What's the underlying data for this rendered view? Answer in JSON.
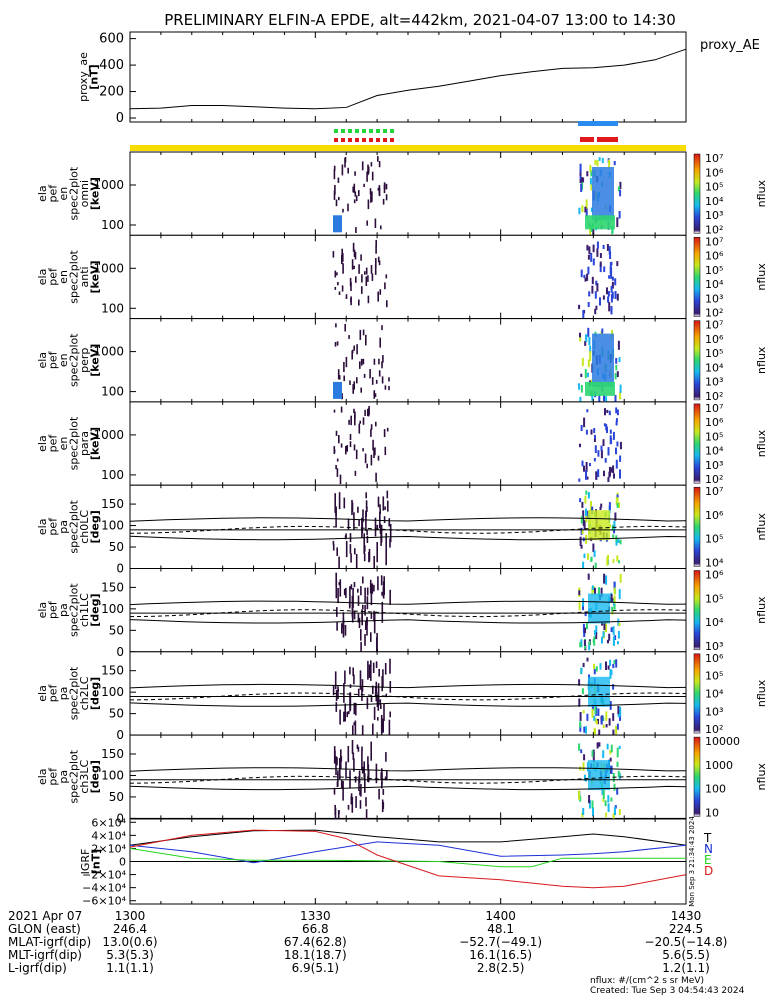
{
  "chart_data": {
    "type": "multi-panel",
    "title": "PRELIMINARY ELFIN-A EPDE, alt=442km, 2021-04-07 13:00 to 14:30",
    "time_ticks": [
      "1300",
      "1330",
      "1400",
      "1430"
    ],
    "ae_panel": {
      "ylabel_lines": [
        "proxy_ae",
        "[nT]"
      ],
      "legend": "proxy_AE",
      "ylim": [
        -30,
        650
      ],
      "yticks": [
        "600",
        "400",
        "200",
        "0"
      ],
      "ytick_values": [
        600,
        400,
        200,
        0
      ],
      "x": [
        0,
        5,
        10,
        15,
        20,
        25,
        30,
        35,
        40,
        45,
        50,
        55,
        60,
        65,
        70,
        75,
        80,
        85,
        90
      ],
      "values": [
        70,
        75,
        95,
        95,
        85,
        75,
        70,
        80,
        170,
        210,
        240,
        280,
        320,
        350,
        375,
        380,
        400,
        440,
        520
      ]
    },
    "spectrogram_panels": [
      {
        "ylabel_lines": [
          "ela",
          "pef",
          "en",
          "spec2plot",
          "omni",
          "[keV]"
        ],
        "yticks": [
          "1000",
          "100"
        ],
        "cbar_ticks": [
          "10⁷",
          "10⁶",
          "10⁵",
          "10⁴",
          "10³",
          "10²"
        ],
        "cbar_label": "nflux"
      },
      {
        "ylabel_lines": [
          "ela",
          "pef",
          "en",
          "spec2plot",
          "anti",
          "[keV]"
        ],
        "yticks": [
          "1000",
          "100"
        ],
        "cbar_ticks": [
          "10⁷",
          "10⁶",
          "10⁵",
          "10⁴",
          "10³",
          "10²"
        ],
        "cbar_label": "nflux"
      },
      {
        "ylabel_lines": [
          "ela",
          "pef",
          "en",
          "spec2plot",
          "perp",
          "[keV]"
        ],
        "yticks": [
          "1000",
          "100"
        ],
        "cbar_ticks": [
          "10⁷",
          "10⁶",
          "10⁵",
          "10⁴",
          "10³",
          "10²"
        ],
        "cbar_label": "nflux"
      },
      {
        "ylabel_lines": [
          "ela",
          "pef",
          "en",
          "spec2plot",
          "para",
          "[keV]"
        ],
        "yticks": [
          "1000",
          "100"
        ],
        "cbar_ticks": [
          "10⁷",
          "10⁶",
          "10⁵",
          "10⁴",
          "10³",
          "10²"
        ],
        "cbar_label": "nflux"
      },
      {
        "ylabel_lines": [
          "ela",
          "pef",
          "pa",
          "spec2plot",
          "ch0LC",
          "[deg]"
        ],
        "yticks": [
          "150",
          "100",
          "50",
          "0"
        ],
        "cbar_ticks": [
          "10⁷",
          "10⁶",
          "10⁵",
          "10⁴"
        ],
        "cbar_label": "nflux"
      },
      {
        "ylabel_lines": [
          "ela",
          "pef",
          "pa",
          "spec2plot",
          "ch1LC",
          "[deg]"
        ],
        "yticks": [
          "150",
          "100",
          "50",
          "0"
        ],
        "cbar_ticks": [
          "10⁶",
          "10⁵",
          "10⁴",
          "10³"
        ],
        "cbar_label": "nflux"
      },
      {
        "ylabel_lines": [
          "ela",
          "pef",
          "pa",
          "spec2plot",
          "ch2LC",
          "[deg]"
        ],
        "yticks": [
          "150",
          "100",
          "50",
          "0"
        ],
        "cbar_ticks": [
          "10⁶",
          "10⁵",
          "10⁴",
          "10³",
          "10²"
        ],
        "cbar_label": "nflux"
      },
      {
        "ylabel_lines": [
          "ela",
          "pef",
          "pa",
          "spec2plot",
          "ch3LC",
          "[deg]"
        ],
        "yticks": [
          "150",
          "100",
          "50",
          "0"
        ],
        "cbar_ticks": [
          "10000",
          "1000",
          "100",
          "10"
        ],
        "cbar_label": "nflux"
      }
    ],
    "igrf_panel": {
      "ylabel_lines": [
        "IGRF",
        "[nT]"
      ],
      "yticks": [
        "6×10⁴",
        "4×10⁴",
        "2×10⁴",
        "0",
        "−2×10⁴",
        "−4×10⁴",
        "−6×10⁴"
      ],
      "ytick_values": [
        60000,
        40000,
        20000,
        0,
        -20000,
        -40000,
        -60000
      ],
      "ylim": [
        -65000,
        65000
      ],
      "series": [
        {
          "name": "T",
          "color": "#000000",
          "x": [
            0,
            10,
            20,
            30,
            40,
            50,
            60,
            70,
            75,
            80,
            90
          ],
          "values": [
            25000,
            38000,
            47000,
            48000,
            38000,
            30000,
            30000,
            38000,
            42000,
            38000,
            25000
          ]
        },
        {
          "name": "N",
          "color": "#1c2fd6",
          "x": [
            0,
            10,
            20,
            30,
            40,
            50,
            60,
            70,
            75,
            80,
            90
          ],
          "values": [
            25000,
            15000,
            -2000,
            15000,
            30000,
            25000,
            8000,
            10000,
            12000,
            15000,
            25000
          ]
        },
        {
          "name": "E",
          "color": "#26d41f",
          "x": [
            0,
            10,
            20,
            30,
            40,
            50,
            60,
            65,
            70,
            80,
            90
          ],
          "values": [
            20000,
            5000,
            2000,
            2000,
            1000,
            0,
            -8000,
            -8000,
            5000,
            5000,
            5000
          ]
        },
        {
          "name": "D",
          "color": "#d8191c",
          "x": [
            0,
            10,
            20,
            30,
            35,
            40,
            50,
            60,
            70,
            75,
            80,
            90
          ],
          "values": [
            22000,
            40000,
            48000,
            46000,
            35000,
            10000,
            -22000,
            -28000,
            -38000,
            -40000,
            -38000,
            -20000
          ]
        }
      ],
      "right_stamp": "Mon Sep  3 21:34:43 2024"
    },
    "footer": {
      "rows": [
        {
          "label": "2021 Apr 07",
          "vals": [
            "1300",
            "1330",
            "1400",
            "1430"
          ]
        },
        {
          "label": "GLON (east)",
          "vals": [
            "246.4",
            "66.8",
            "48.1",
            "224.5"
          ]
        },
        {
          "label": "MLAT-igrf(dip)",
          "vals": [
            "13.0(0.6)",
            "67.4(62.8)",
            "−52.7(−49.1)",
            "−20.5(−14.8)"
          ]
        },
        {
          "label": "MLT-igrf(dip)",
          "vals": [
            "5.3(5.3)",
            "18.1(18.7)",
            "16.1(16.5)",
            "5.6(5.5)"
          ]
        },
        {
          "label": "L-igrf(dip)",
          "vals": [
            "1.1(1.1)",
            "6.9(5.1)",
            "2.8(2.5)",
            "1.2(1.1)"
          ]
        }
      ],
      "credit_line1": "nflux: #/(cm^2 s sr MeV)",
      "credit_line2": "Created: Tue Sep  3 04:54:43 2024"
    },
    "colors": {
      "bar_yellow": "#f6dc00",
      "green_marks": "#22d63a",
      "red_marks": "#e0191c",
      "blue_bar": "#2a8bf0"
    }
  }
}
